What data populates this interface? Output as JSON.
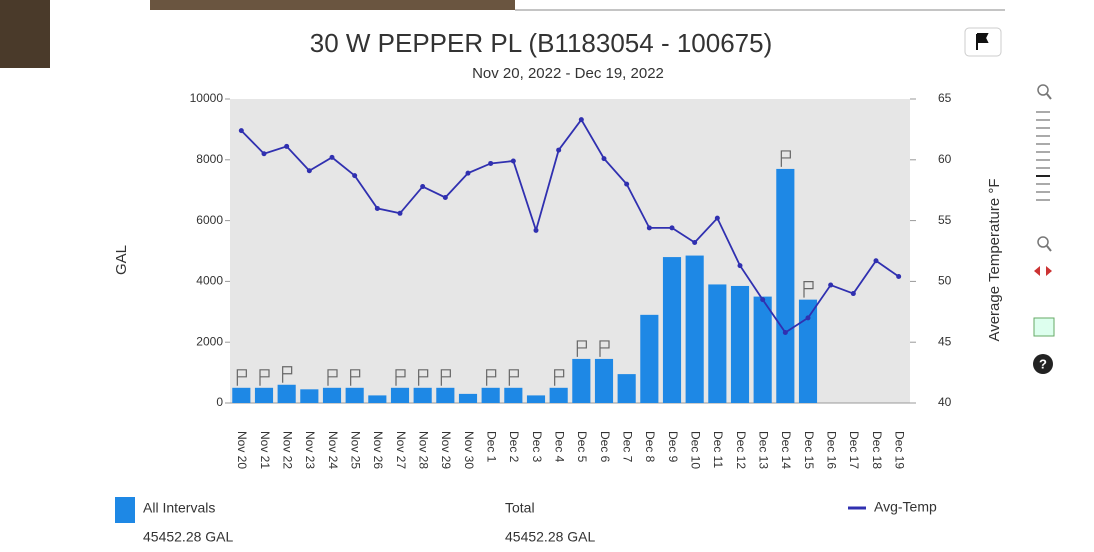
{
  "chart_data": {
    "type": "bar_line",
    "title": "30 W PEPPER PL (B1183054 - 100675)",
    "subtitle": "Nov 20, 2022 - Dec 19, 2022",
    "y_label": "GAL",
    "y2_label": "Average Temperature °F",
    "categories": [
      "Nov 20",
      "Nov 21",
      "Nov 22",
      "Nov 23",
      "Nov 24",
      "Nov 25",
      "Nov 26",
      "Nov 27",
      "Nov 28",
      "Nov 29",
      "Nov 30",
      "Dec 1",
      "Dec 2",
      "Dec 3",
      "Dec 4",
      "Dec 5",
      "Dec 6",
      "Dec 7",
      "Dec 8",
      "Dec 9",
      "Dec 10",
      "Dec 11",
      "Dec 12",
      "Dec 13",
      "Dec 14",
      "Dec 15",
      "Dec 16",
      "Dec 17",
      "Dec 18",
      "Dec 19"
    ],
    "series": [
      {
        "name": "All Intervals",
        "color": "#1e88e5",
        "type": "bar",
        "values": [
          500,
          500,
          600,
          450,
          500,
          500,
          250,
          500,
          500,
          500,
          300,
          500,
          500,
          250,
          500,
          1450,
          1450,
          950,
          2900,
          4800,
          4850,
          3900,
          3850,
          3500,
          7700,
          3400,
          null,
          null,
          null,
          null
        ]
      },
      {
        "name": "Avg-Temp",
        "color": "#3030b0",
        "type": "line",
        "axis": "y2",
        "values": [
          62.4,
          60.5,
          61.1,
          59.1,
          60.2,
          58.7,
          56.0,
          55.6,
          57.8,
          56.9,
          58.9,
          59.7,
          59.9,
          54.2,
          60.8,
          63.3,
          60.1,
          58.0,
          54.4,
          54.4,
          53.2,
          55.2,
          51.3,
          48.5,
          45.8,
          47.0,
          49.7,
          49.0,
          51.7,
          50.4
        ]
      }
    ],
    "ylim": [
      0,
      10000
    ],
    "yticks": [
      0,
      2000,
      4000,
      6000,
      8000,
      10000
    ],
    "y2lim": [
      40,
      65
    ],
    "y2ticks": [
      40,
      45,
      50,
      55,
      60,
      65
    ],
    "footer": {
      "series_total": "45452.28 GAL",
      "total_label": "Total",
      "total_value": "45452.28 GAL"
    }
  }
}
